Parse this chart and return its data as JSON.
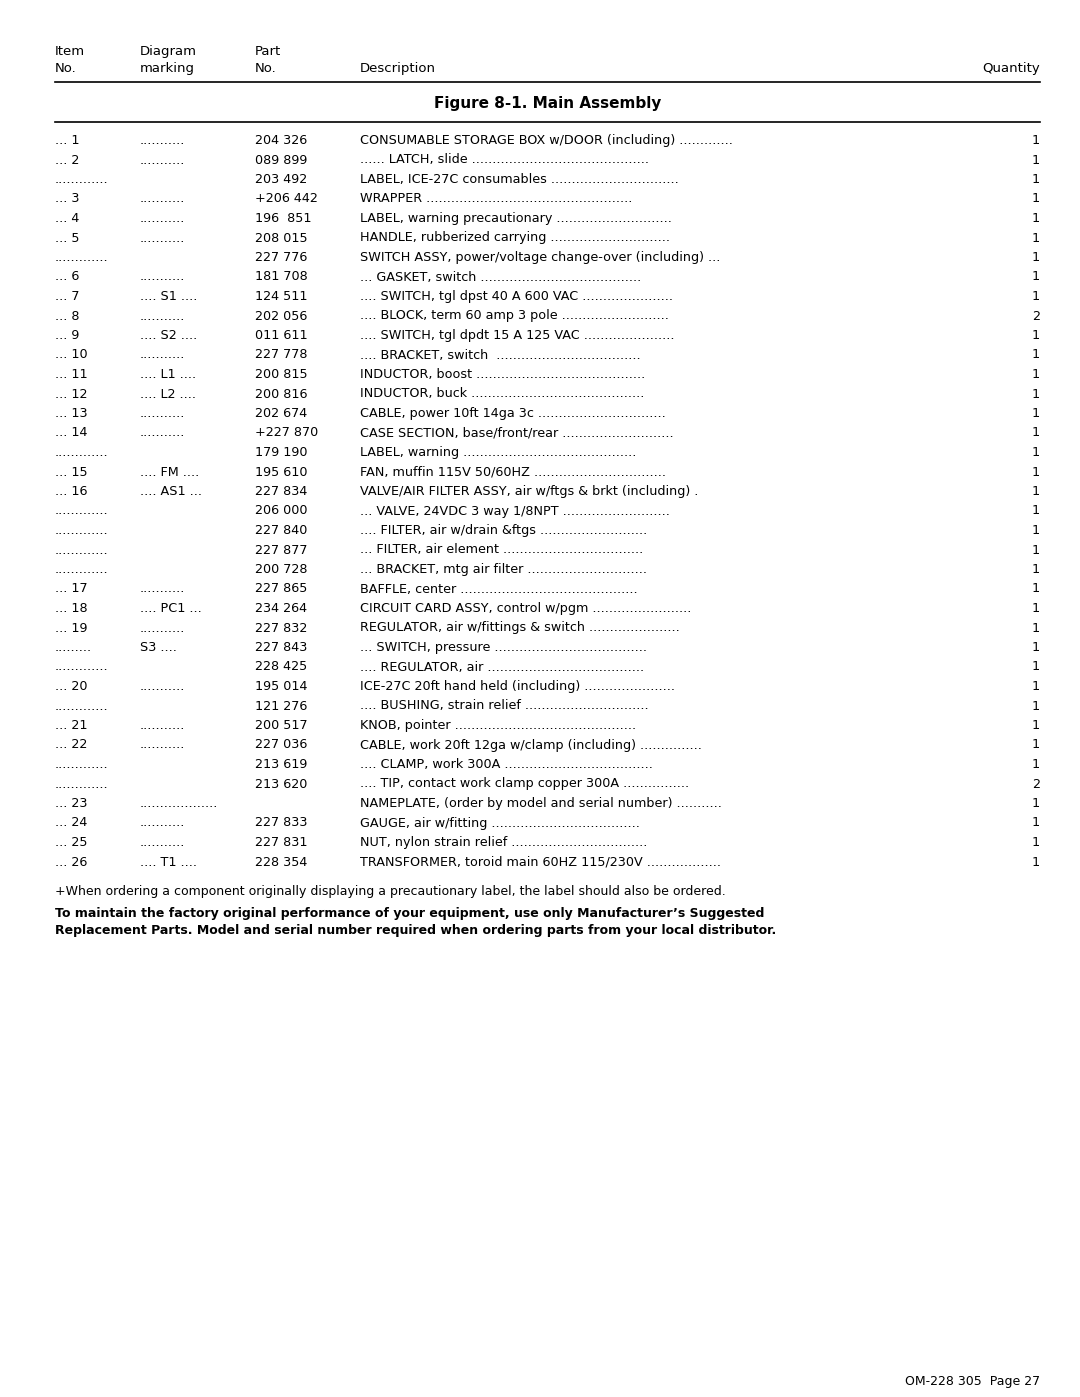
{
  "title": "Figure 8-1. Main Assembly",
  "rows": [
    {
      "item": "... 1",
      "diag": "...........",
      "part": "204 326",
      "desc": "CONSUMABLE STORAGE BOX w/DOOR (including) .............",
      "qty": "1"
    },
    {
      "item": "... 2",
      "diag": "...........",
      "part": "089 899",
      "desc": "...... LATCH, slide ...........................................",
      "qty": "1"
    },
    {
      "item": ".............",
      "diag": "",
      "part": "203 492",
      "desc": "LABEL, ICE-27C consumables ...............................",
      "qty": "1"
    },
    {
      "item": "... 3",
      "diag": "...........",
      "part": "+206 442",
      "desc": "WRAPPER ..................................................",
      "qty": "1"
    },
    {
      "item": "... 4",
      "diag": "...........",
      "part": "196  851",
      "desc": "LABEL, warning precautionary ............................",
      "qty": "1"
    },
    {
      "item": "... 5",
      "diag": "...........",
      "part": "208 015",
      "desc": "HANDLE, rubberized carrying .............................",
      "qty": "1"
    },
    {
      "item": ".............",
      "diag": "",
      "part": "227 776",
      "desc": "SWITCH ASSY, power/voltage change-over (including) ...",
      "qty": "1"
    },
    {
      "item": "... 6",
      "diag": "...........",
      "part": "181 708",
      "desc": "... GASKET, switch .......................................",
      "qty": "1"
    },
    {
      "item": "... 7",
      "diag": ".... S1 ....",
      "part": "124 511",
      "desc": ".... SWITCH, tgl dpst 40 A 600 VAC ......................",
      "qty": "1"
    },
    {
      "item": "... 8",
      "diag": "...........",
      "part": "202 056",
      "desc": ".... BLOCK, term 60 amp 3 pole ..........................",
      "qty": "2"
    },
    {
      "item": "... 9",
      "diag": ".... S2 ....",
      "part": "011 611",
      "desc": ".... SWITCH, tgl dpdt 15 A 125 VAC ......................",
      "qty": "1"
    },
    {
      "item": "... 10",
      "diag": "...........",
      "part": "227 778",
      "desc": ".... BRACKET, switch  ...................................",
      "qty": "1"
    },
    {
      "item": "... 11",
      "diag": ".... L1 ....",
      "part": "200 815",
      "desc": "INDUCTOR, boost .........................................",
      "qty": "1"
    },
    {
      "item": "... 12",
      "diag": ".... L2 ....",
      "part": "200 816",
      "desc": "INDUCTOR, buck ..........................................",
      "qty": "1"
    },
    {
      "item": "... 13",
      "diag": "...........",
      "part": "202 674",
      "desc": "CABLE, power 10ft 14ga 3c ...............................",
      "qty": "1"
    },
    {
      "item": "... 14",
      "diag": "...........",
      "part": "+227 870",
      "desc": "CASE SECTION, base/front/rear ...........................",
      "qty": "1"
    },
    {
      "item": ".............",
      "diag": "",
      "part": "179 190",
      "desc": "LABEL, warning ..........................................",
      "qty": "1"
    },
    {
      "item": "... 15",
      "diag": ".... FM ....",
      "part": "195 610",
      "desc": "FAN, muffin 115V 50/60HZ ................................",
      "qty": "1"
    },
    {
      "item": "... 16",
      "diag": ".... AS1 ...",
      "part": "227 834",
      "desc": "VALVE/AIR FILTER ASSY, air w/ftgs & brkt (including) .",
      "qty": "1"
    },
    {
      "item": ".............",
      "diag": "",
      "part": "206 000",
      "desc": "... VALVE, 24VDC 3 way 1/8NPT ..........................",
      "qty": "1"
    },
    {
      "item": ".............",
      "diag": "",
      "part": "227 840",
      "desc": ".... FILTER, air w/drain &ftgs ..........................",
      "qty": "1"
    },
    {
      "item": ".............",
      "diag": "",
      "part": "227 877",
      "desc": "... FILTER, air element ..................................",
      "qty": "1"
    },
    {
      "item": ".............",
      "diag": "",
      "part": "200 728",
      "desc": "... BRACKET, mtg air filter .............................",
      "qty": "1"
    },
    {
      "item": "... 17",
      "diag": "...........",
      "part": "227 865",
      "desc": "BAFFLE, center ...........................................",
      "qty": "1"
    },
    {
      "item": "... 18",
      "diag": ".... PC1 ...",
      "part": "234 264",
      "desc": "CIRCUIT CARD ASSY, control w/pgm ........................",
      "qty": "1"
    },
    {
      "item": "... 19",
      "diag": "...........",
      "part": "227 832",
      "desc": "REGULATOR, air w/fittings & switch ......................",
      "qty": "1"
    },
    {
      "item": ".........",
      "diag": "S3 ....",
      "part": "227 843",
      "desc": "... SWITCH, pressure .....................................",
      "qty": "1"
    },
    {
      "item": ".............",
      "diag": "",
      "part": "228 425",
      "desc": ".... REGULATOR, air ......................................",
      "qty": "1"
    },
    {
      "item": "... 20",
      "diag": "...........",
      "part": "195 014",
      "desc": "ICE-27C 20ft hand held (including) ......................",
      "qty": "1"
    },
    {
      "item": ".............",
      "diag": "",
      "part": "121 276",
      "desc": ".... BUSHING, strain relief ..............................",
      "qty": "1"
    },
    {
      "item": "... 21",
      "diag": "...........",
      "part": "200 517",
      "desc": "KNOB, pointer ............................................",
      "qty": "1"
    },
    {
      "item": "... 22",
      "diag": "...........",
      "part": "227 036",
      "desc": "CABLE, work 20ft 12ga w/clamp (including) ...............",
      "qty": "1"
    },
    {
      "item": ".............",
      "diag": "",
      "part": "213 619",
      "desc": ".... CLAMP, work 300A ....................................",
      "qty": "1"
    },
    {
      "item": ".............",
      "diag": "",
      "part": "213 620",
      "desc": ".... TIP, contact work clamp copper 300A ................",
      "qty": "2"
    },
    {
      "item": "... 23",
      "diag": "...................",
      "part": "",
      "desc": "NAMEPLATE, (order by model and serial number) ...........",
      "qty": "1"
    },
    {
      "item": "... 24",
      "diag": "...........",
      "part": "227 833",
      "desc": "GAUGE, air w/fitting ....................................",
      "qty": "1"
    },
    {
      "item": "... 25",
      "diag": "...........",
      "part": "227 831",
      "desc": "NUT, nylon strain relief .................................",
      "qty": "1"
    },
    {
      "item": "... 26",
      "diag": ".... T1 ....",
      "part": "228 354",
      "desc": "TRANSFORMER, toroid main 60HZ 115/230V ..................",
      "qty": "1"
    }
  ],
  "footnote1": "+When ordering a component originally displaying a precautionary label, the label should also be ordered.",
  "footnote2_bold": "To maintain the factory original performance of your equipment, use only Manufacturer’s Suggested\nReplacement Parts. Model and serial number required when ordering parts from your local distributor.",
  "page_ref": "OM-228 305  Page 27",
  "bg_color": "#ffffff",
  "text_color": "#000000"
}
